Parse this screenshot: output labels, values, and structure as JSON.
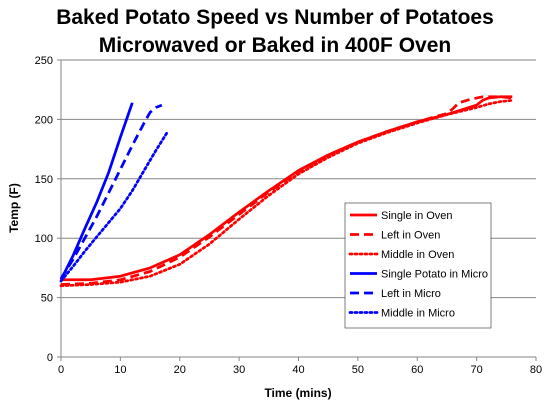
{
  "chart_data": {
    "type": "line",
    "title": [
      "Baked Potato Speed vs  Number of Potatoes",
      "Microwaved or Baked in 400F Oven"
    ],
    "xlabel": "Time (mins)",
    "ylabel": "Temp (F)",
    "xlim": [
      0,
      80
    ],
    "ylim": [
      0,
      250
    ],
    "xticks": [
      0,
      10,
      20,
      30,
      40,
      50,
      60,
      70,
      80
    ],
    "yticks": [
      0,
      50,
      100,
      150,
      200,
      250
    ],
    "grid": "horizontal",
    "legend_position": "right",
    "series": [
      {
        "name": "Single in Oven",
        "color": "#ff0000",
        "dash": "solid",
        "x": [
          0,
          5,
          10,
          15,
          20,
          25,
          30,
          35,
          40,
          45,
          50,
          55,
          60,
          65,
          70,
          71,
          72,
          74,
          76
        ],
        "y": [
          65,
          65,
          68,
          75,
          86,
          103,
          122,
          140,
          157,
          170,
          181,
          190,
          198,
          204,
          212,
          216,
          218,
          219,
          219
        ]
      },
      {
        "name": "Left in Oven",
        "color": "#ff0000",
        "dash": "dashed",
        "x": [
          0,
          5,
          10,
          15,
          20,
          25,
          30,
          35,
          40,
          45,
          50,
          55,
          60,
          65,
          66,
          67,
          69,
          71,
          74,
          76
        ],
        "y": [
          61,
          62,
          65,
          72,
          84,
          101,
          120,
          139,
          156,
          170,
          181,
          190,
          198,
          205,
          209,
          214,
          217,
          219,
          219,
          218
        ]
      },
      {
        "name": "Middle in Oven",
        "color": "#ff0000",
        "dash": "dotted",
        "x": [
          0,
          5,
          10,
          15,
          20,
          25,
          30,
          35,
          40,
          45,
          50,
          55,
          60,
          65,
          70,
          72,
          74,
          76
        ],
        "y": [
          60,
          61,
          63,
          68,
          78,
          95,
          116,
          136,
          154,
          168,
          180,
          189,
          197,
          204,
          210,
          213,
          215,
          216
        ]
      },
      {
        "name": "Single Potato in Micro",
        "color": "#0000ff",
        "dash": "solid",
        "x": [
          0,
          2,
          4,
          6,
          8,
          10,
          12
        ],
        "y": [
          65,
          85,
          108,
          130,
          155,
          185,
          214
        ]
      },
      {
        "name": "Left in Micro",
        "color": "#0000ff",
        "dash": "dashed",
        "x": [
          0,
          2,
          4,
          6,
          8,
          10,
          12,
          14,
          15,
          16,
          17
        ],
        "y": [
          66,
          82,
          100,
          118,
          138,
          158,
          178,
          197,
          206,
          210,
          212
        ]
      },
      {
        "name": "Middle in Micro",
        "color": "#0000ff",
        "dash": "dotted",
        "x": [
          0,
          2,
          4,
          6,
          8,
          10,
          12,
          14,
          16,
          18
        ],
        "y": [
          64,
          76,
          89,
          101,
          113,
          125,
          140,
          157,
          174,
          190
        ]
      }
    ]
  }
}
